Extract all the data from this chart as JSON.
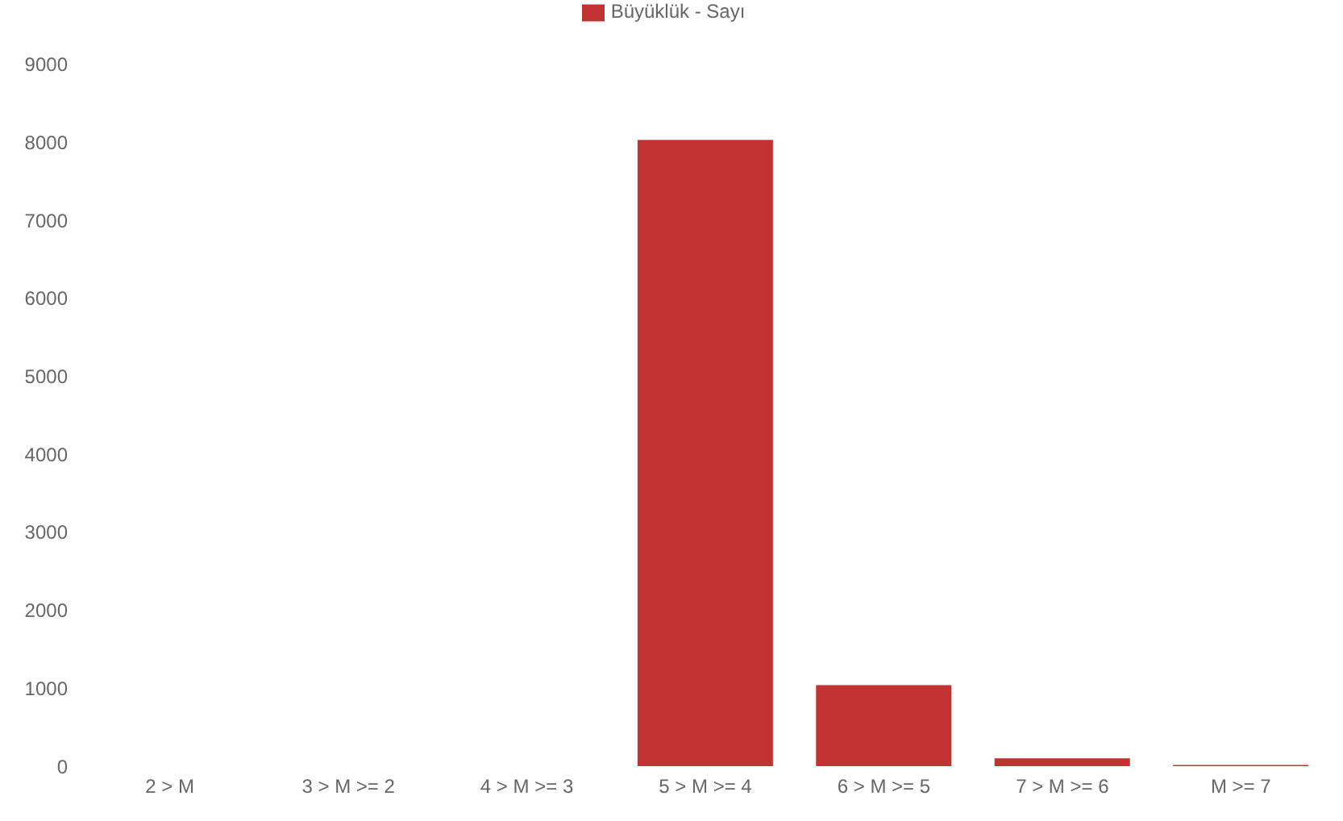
{
  "chart_data": {
    "type": "bar",
    "categories": [
      "2 > M",
      "3 > M >= 2",
      "4 > M >= 3",
      "5 > M >= 4",
      "6 > M >= 5",
      "7 > M >= 6",
      "M >= 7"
    ],
    "series": [
      {
        "name": "Büyüklük - Sayı",
        "color": "#c13333",
        "values": [
          0,
          0,
          0,
          8030,
          1040,
          100,
          15
        ]
      }
    ],
    "ylim": [
      0,
      9000
    ],
    "yticks": [
      0,
      1000,
      2000,
      3000,
      4000,
      5000,
      6000,
      7000,
      8000,
      9000
    ],
    "grid": false,
    "legend": "top"
  }
}
